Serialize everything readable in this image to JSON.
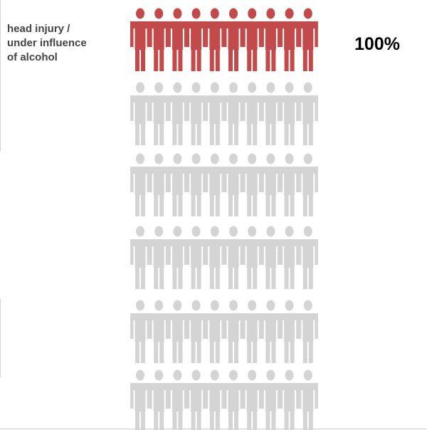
{
  "chart_data": {
    "type": "pictogram",
    "title": "",
    "icon": "person-icon",
    "rows": [
      {
        "label_lines": [
          "head injury /",
          "under influence",
          "of alcohol"
        ],
        "value": 100,
        "value_label": "100%",
        "icons": 10,
        "highlighted": 10,
        "color": "#c24a4a"
      },
      {
        "label_lines": [],
        "value": null,
        "value_label": "",
        "icons": 10,
        "highlighted": 0,
        "color": "#d4d4d4"
      },
      {
        "label_lines": [],
        "value": null,
        "value_label": "",
        "icons": 10,
        "highlighted": 0,
        "color": "#d4d4d4"
      },
      {
        "label_lines": [],
        "value": null,
        "value_label": "",
        "icons": 10,
        "highlighted": 0,
        "color": "#d4d4d4"
      },
      {
        "label_lines": [],
        "value": null,
        "value_label": "",
        "icons": 10,
        "highlighted": 0,
        "color": "#d4d4d4"
      },
      {
        "label_lines": [],
        "value": null,
        "value_label": "",
        "icons": 10,
        "highlighted": 0,
        "color": "#d4d4d4"
      }
    ],
    "colors": {
      "highlight": "#c24a4a",
      "inactive": "#d4d4d4"
    }
  }
}
